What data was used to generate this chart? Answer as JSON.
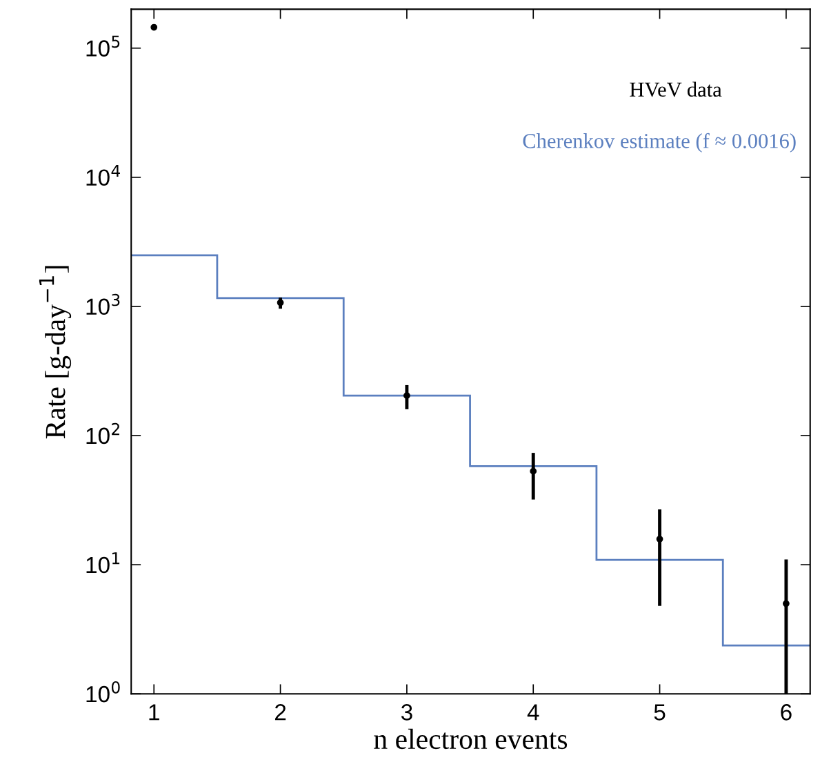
{
  "chart_data": {
    "type": "scatter",
    "xlabel": "n electron events",
    "ylabel": "Rate [g-day$^{−1}$]",
    "log": "y",
    "xlim": [
      0.82,
      6.19
    ],
    "xticks": [
      1,
      2,
      3,
      4,
      5,
      6
    ],
    "ylim": [
      1,
      200000
    ],
    "yticks": [
      {
        "value": 1,
        "label": "10$^{0}$"
      },
      {
        "value": 10,
        "label": "10$^{1}$"
      },
      {
        "value": 100,
        "label": "10$^{2}$"
      },
      {
        "value": 1000,
        "label": "10$^{3}$"
      },
      {
        "value": 10000,
        "label": "10$^{4}$"
      },
      {
        "value": 100000,
        "label": "10$^{5}$"
      }
    ],
    "grid": false,
    "legend": "top right",
    "series": [
      {
        "name": "HVeV data",
        "color": "#000000",
        "marker": "circle",
        "x": [
          1,
          2,
          3,
          4,
          5,
          6
        ],
        "values": [
          145000,
          1070,
          204,
          53,
          15.8,
          5.0
        ],
        "errors": [
          null,
          [
            960,
            1170
          ],
          [
            160,
            246
          ],
          [
            32,
            73.5
          ],
          [
            4.8,
            26.8
          ],
          [
            1,
            11
          ]
        ]
      },
      {
        "name": "Cherenkov estimate (f ≈ 0.0016)",
        "type": "histogram",
        "color": "#5b7fbf",
        "bins": [
          0.82,
          1.5,
          2.5,
          3.5,
          4.5,
          5.5,
          6.19
        ],
        "values": [
          2490,
          1160,
          204,
          58,
          10.9,
          2.37
        ]
      }
    ]
  }
}
